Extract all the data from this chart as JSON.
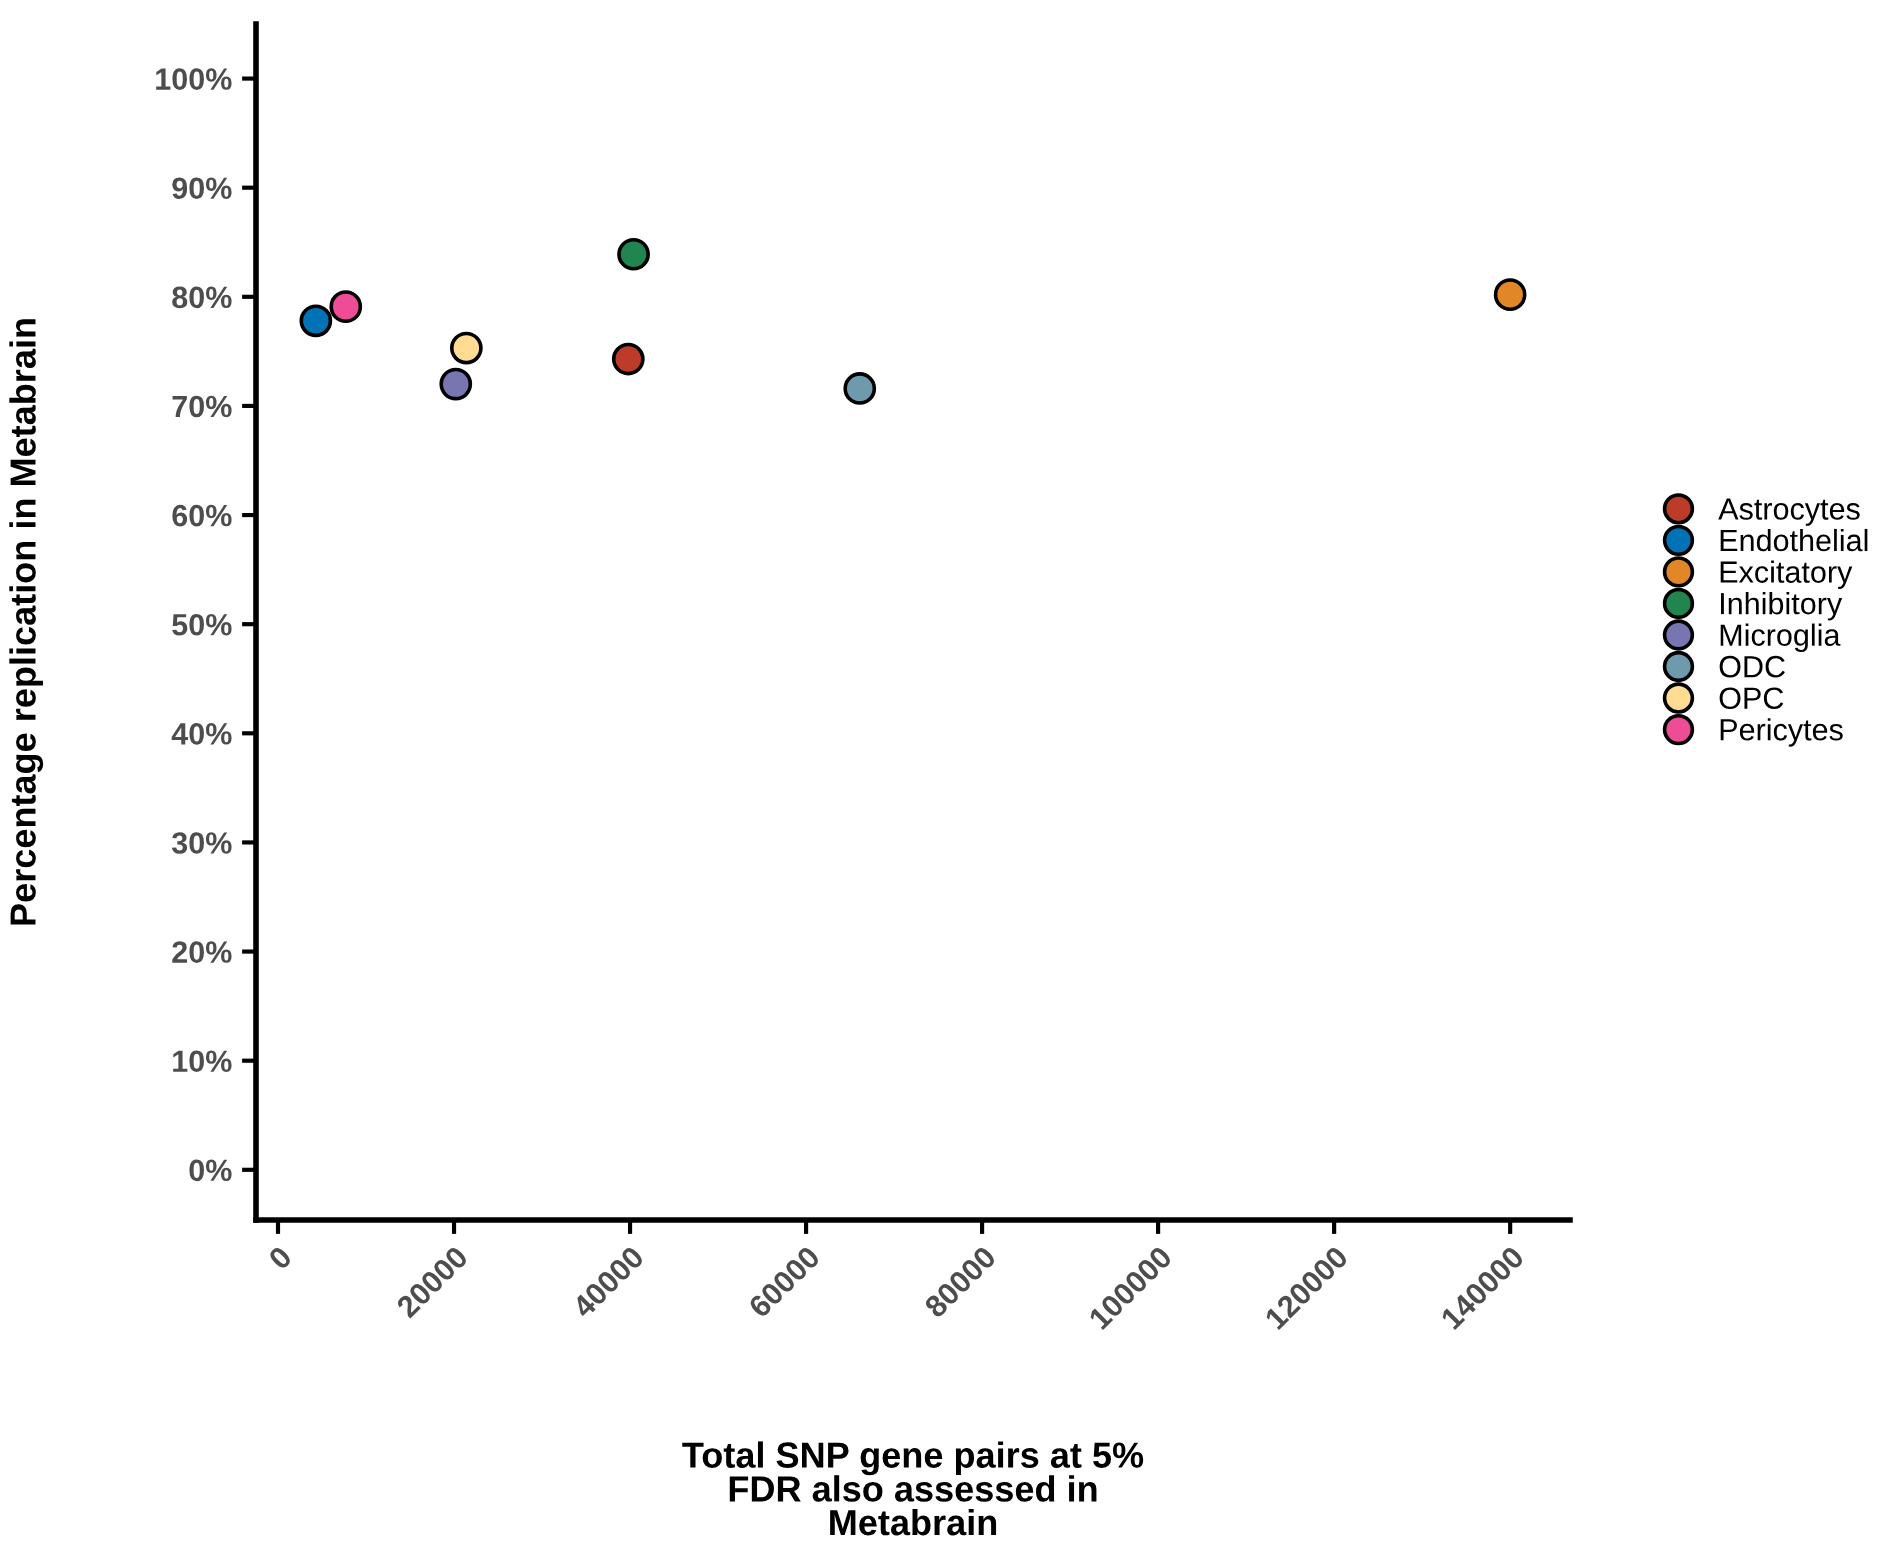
{
  "chart_data": {
    "type": "scatter",
    "xlabel": "Total SNP gene pairs at 5%\nFDR also assessed in\nMetabrain",
    "ylabel": "Percentage replication in Metabrain",
    "series": [
      {
        "name": "Astrocytes",
        "color": "#bc3c29",
        "x": [
          39800
        ],
        "values": [
          74.3
        ]
      },
      {
        "name": "Endothelial",
        "color": "#0072b5",
        "x": [
          4300
        ],
        "values": [
          77.8
        ]
      },
      {
        "name": "Excitatory",
        "color": "#e18727",
        "x": [
          140000
        ],
        "values": [
          80.2
        ]
      },
      {
        "name": "Inhibitory",
        "color": "#20854e",
        "x": [
          40400
        ],
        "values": [
          83.9
        ]
      },
      {
        "name": "Microglia",
        "color": "#7876b1",
        "x": [
          20200
        ],
        "values": [
          72.0
        ]
      },
      {
        "name": "ODC",
        "color": "#6f99ad",
        "x": [
          66100
        ],
        "values": [
          71.6
        ]
      },
      {
        "name": "OPC",
        "color": "#ffdc91",
        "x": [
          21400
        ],
        "values": [
          75.3
        ]
      },
      {
        "name": "Pericytes",
        "color": "#ee4c97",
        "x": [
          7700
        ],
        "values": [
          79.1
        ]
      }
    ],
    "xlim": [
      -2500,
      146800
    ],
    "ylim": [
      -4.6,
      105
    ],
    "xticks": [
      0,
      20000,
      40000,
      60000,
      80000,
      100000,
      120000,
      140000
    ],
    "yticks": [
      {
        "value": 0,
        "label": "0%"
      },
      {
        "value": 10,
        "label": "10%"
      },
      {
        "value": 20,
        "label": "20%"
      },
      {
        "value": 30,
        "label": "30%"
      },
      {
        "value": 40,
        "label": "40%"
      },
      {
        "value": 50,
        "label": "50%"
      },
      {
        "value": 60,
        "label": "60%"
      },
      {
        "value": 70,
        "label": "70%"
      },
      {
        "value": 80,
        "label": "80%"
      },
      {
        "value": 90,
        "label": "90%"
      },
      {
        "value": 100,
        "label": "100%"
      }
    ],
    "marker": "circle",
    "grid": false,
    "legend": "right"
  }
}
